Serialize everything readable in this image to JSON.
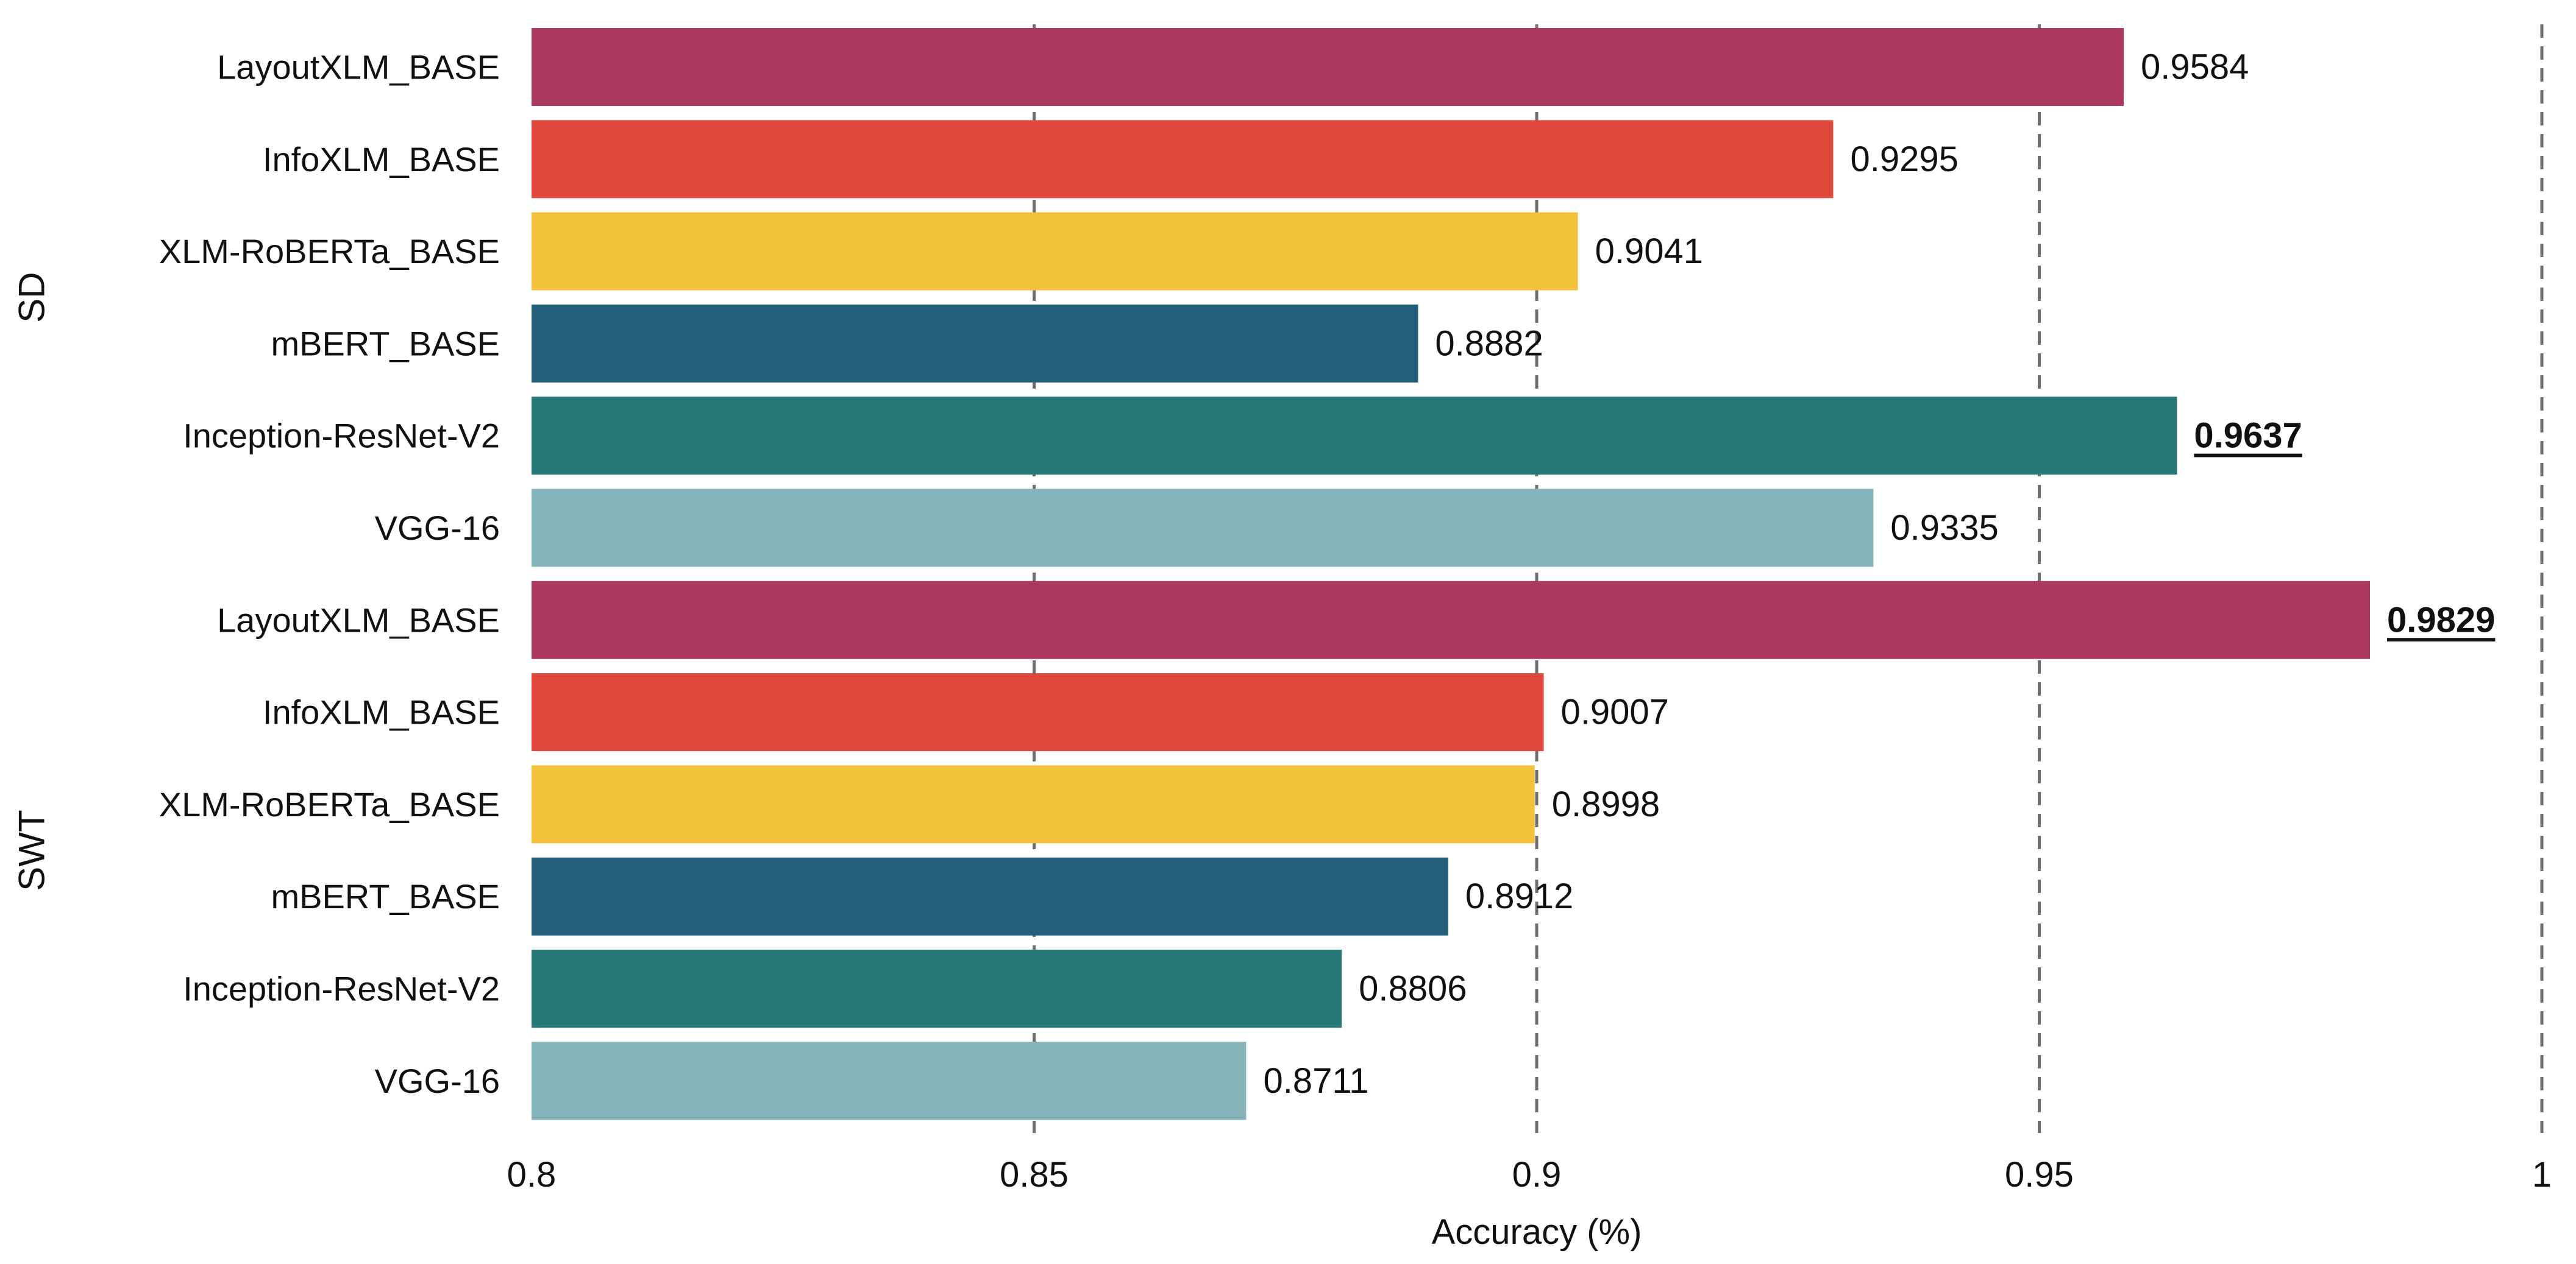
{
  "chart_data": {
    "type": "bar",
    "orientation": "horizontal",
    "title": "",
    "xlabel": "Accuracy (%)",
    "ylabel": "",
    "xlim": [
      0.8,
      1.0
    ],
    "xticks": [
      0.8,
      0.85,
      0.9,
      0.95,
      1.0
    ],
    "xtick_labels": [
      "0.8",
      "0.85",
      "0.9",
      "0.95",
      "1"
    ],
    "grid": "vertical dashed",
    "groups": [
      {
        "name": "SD",
        "bars": [
          {
            "label": "LayoutXLM_BASE",
            "value": 0.9584,
            "value_label": "0.9584",
            "color": "#ad3a5e",
            "best": false
          },
          {
            "label": "InfoXLM_BASE",
            "value": 0.9295,
            "value_label": "0.9295",
            "color": "#e0483c",
            "best": false
          },
          {
            "label": "XLM-RoBERTa_BASE",
            "value": 0.9041,
            "value_label": "0.9041",
            "color": "#f2c23c",
            "best": false
          },
          {
            "label": "mBERT_BASE",
            "value": 0.8882,
            "value_label": "0.8882",
            "color": "#245f7a",
            "best": false
          },
          {
            "label": "Inception-ResNet-V2",
            "value": 0.9637,
            "value_label": "0.9637",
            "color": "#267877",
            "best": true
          },
          {
            "label": "VGG-16",
            "value": 0.9335,
            "value_label": "0.9335",
            "color": "#85b5bb",
            "best": false
          }
        ]
      },
      {
        "name": "SWT",
        "bars": [
          {
            "label": "LayoutXLM_BASE",
            "value": 0.9829,
            "value_label": "0.9829",
            "color": "#ad3a5e",
            "best": true
          },
          {
            "label": "InfoXLM_BASE",
            "value": 0.9007,
            "value_label": "0.9007",
            "color": "#e0483c",
            "best": false
          },
          {
            "label": "XLM-RoBERTa_BASE",
            "value": 0.8998,
            "value_label": "0.8998",
            "color": "#f2c23c",
            "best": false
          },
          {
            "label": "mBERT_BASE",
            "value": 0.8912,
            "value_label": "0.8912",
            "color": "#245f7a",
            "best": false
          },
          {
            "label": "Inception-ResNet-V2",
            "value": 0.8806,
            "value_label": "0.8806",
            "color": "#267877",
            "best": false
          },
          {
            "label": "VGG-16",
            "value": 0.8711,
            "value_label": "0.8711",
            "color": "#85b5bb",
            "best": false
          }
        ]
      }
    ]
  }
}
